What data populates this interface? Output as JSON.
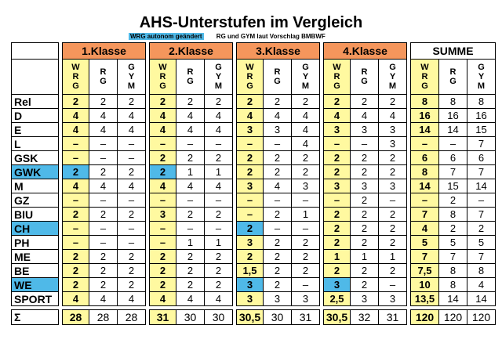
{
  "title": "AHS-Unterstufen im Vergleich",
  "subtitle_highlight": "WRG autonom geändert",
  "subtitle_plain": "RG und GYM laut Vorschlag BMBWF",
  "groups": [
    "1.Klasse",
    "2.Klasse",
    "3.Klasse",
    "4.Klasse",
    "SUMME"
  ],
  "subcols": [
    "W\nR\nG",
    "R\nG",
    "G\nY\nM"
  ],
  "rows": [
    {
      "label": "Rel",
      "vals": [
        [
          "2",
          "2",
          "2"
        ],
        [
          "2",
          "2",
          "2"
        ],
        [
          "2",
          "2",
          "2"
        ],
        [
          "2",
          "2",
          "2"
        ],
        [
          "8",
          "8",
          "8"
        ]
      ]
    },
    {
      "label": "D",
      "vals": [
        [
          "4",
          "4",
          "4"
        ],
        [
          "4",
          "4",
          "4"
        ],
        [
          "4",
          "4",
          "4"
        ],
        [
          "4",
          "4",
          "4"
        ],
        [
          "16",
          "16",
          "16"
        ]
      ]
    },
    {
      "label": "E",
      "vals": [
        [
          "4",
          "4",
          "4"
        ],
        [
          "4",
          "4",
          "4"
        ],
        [
          "3",
          "3",
          "4"
        ],
        [
          "3",
          "3",
          "3"
        ],
        [
          "14",
          "14",
          "15"
        ]
      ]
    },
    {
      "label": "L",
      "vals": [
        [
          "–",
          "–",
          "–"
        ],
        [
          "–",
          "–",
          "–"
        ],
        [
          "–",
          "–",
          "4"
        ],
        [
          "–",
          "–",
          "3"
        ],
        [
          "–",
          "–",
          "7"
        ]
      ]
    },
    {
      "label": "GSK",
      "vals": [
        [
          "–",
          "–",
          "–"
        ],
        [
          "2",
          "2",
          "2"
        ],
        [
          "2",
          "2",
          "2"
        ],
        [
          "2",
          "2",
          "2"
        ],
        [
          "6",
          "6",
          "6"
        ]
      ]
    },
    {
      "label": "GWK",
      "blue": true,
      "vals": [
        [
          "2",
          "2",
          "2"
        ],
        [
          "2",
          "1",
          "1"
        ],
        [
          "2",
          "2",
          "2"
        ],
        [
          "2",
          "2",
          "2"
        ],
        [
          "8",
          "7",
          "7"
        ]
      ]
    },
    {
      "label": "M",
      "vals": [
        [
          "4",
          "4",
          "4"
        ],
        [
          "4",
          "4",
          "4"
        ],
        [
          "3",
          "4",
          "3"
        ],
        [
          "3",
          "3",
          "3"
        ],
        [
          "14",
          "15",
          "14"
        ]
      ]
    },
    {
      "label": "GZ",
      "vals": [
        [
          "–",
          "–",
          "–"
        ],
        [
          "–",
          "–",
          "–"
        ],
        [
          "–",
          "–",
          "–"
        ],
        [
          "–",
          "2",
          "–"
        ],
        [
          "–",
          "2",
          "–"
        ]
      ]
    },
    {
      "label": "BIU",
      "vals": [
        [
          "2",
          "2",
          "2"
        ],
        [
          "3",
          "2",
          "2"
        ],
        [
          "–",
          "2",
          "1"
        ],
        [
          "2",
          "2",
          "2"
        ],
        [
          "7",
          "8",
          "7"
        ]
      ]
    },
    {
      "label": "CH",
      "blue": true,
      "vals": [
        [
          "–",
          "–",
          "–"
        ],
        [
          "–",
          "–",
          "–"
        ],
        [
          "2",
          "–",
          "–"
        ],
        [
          "2",
          "2",
          "2"
        ],
        [
          "4",
          "2",
          "2"
        ]
      ]
    },
    {
      "label": "PH",
      "vals": [
        [
          "–",
          "–",
          "–"
        ],
        [
          "–",
          "1",
          "1"
        ],
        [
          "3",
          "2",
          "2"
        ],
        [
          "2",
          "2",
          "2"
        ],
        [
          "5",
          "5",
          "5"
        ]
      ]
    },
    {
      "label": "ME",
      "vals": [
        [
          "2",
          "2",
          "2"
        ],
        [
          "2",
          "2",
          "2"
        ],
        [
          "2",
          "2",
          "2"
        ],
        [
          "1",
          "1",
          "1"
        ],
        [
          "7",
          "7",
          "7"
        ]
      ]
    },
    {
      "label": "BE",
      "vals": [
        [
          "2",
          "2",
          "2"
        ],
        [
          "2",
          "2",
          "2"
        ],
        [
          "1,5",
          "2",
          "2"
        ],
        [
          "2",
          "2",
          "2"
        ],
        [
          "7,5",
          "8",
          "8"
        ]
      ]
    },
    {
      "label": "WE",
      "blue": true,
      "vals": [
        [
          "2",
          "2",
          "2"
        ],
        [
          "2",
          "2",
          "2"
        ],
        [
          "3",
          "2",
          "–"
        ],
        [
          "3",
          "2",
          "–"
        ],
        [
          "10",
          "8",
          "4"
        ]
      ]
    },
    {
      "label": "SPORT",
      "vals": [
        [
          "4",
          "4",
          "4"
        ],
        [
          "4",
          "4",
          "4"
        ],
        [
          "3",
          "3",
          "3"
        ],
        [
          "2,5",
          "3",
          "3"
        ],
        [
          "13,5",
          "14",
          "14"
        ]
      ]
    }
  ],
  "sum": {
    "label": "Σ",
    "vals": [
      [
        "28",
        "28",
        "28"
      ],
      [
        "31",
        "30",
        "30"
      ],
      [
        "30,5",
        "30",
        "31"
      ],
      [
        "30,5",
        "32",
        "31"
      ],
      [
        "120",
        "120",
        "120"
      ]
    ]
  },
  "blue_rows": {
    "GWK": [
      0,
      1
    ],
    "CH": [
      2
    ],
    "WE": [
      2,
      3
    ]
  },
  "colors": {
    "orange": "#f5965c",
    "yellow": "#fff9a0",
    "blue": "#4fb9e8"
  }
}
